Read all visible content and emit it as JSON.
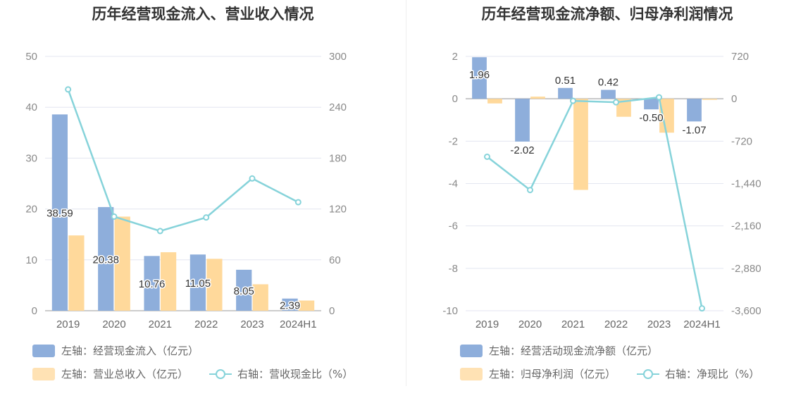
{
  "colors": {
    "bar_primary": "#8eaedb",
    "bar_secondary": "#ffd99b",
    "line": "#86d3da",
    "grid": "#e3e6f0",
    "axis": "#999999"
  },
  "chart_data": [
    {
      "type": "bar",
      "title": "历年经营现金流入、营业收入情况",
      "categories": [
        "2019",
        "2020",
        "2021",
        "2022",
        "2023",
        "2024H1"
      ],
      "ylim": [
        0,
        50
      ],
      "yticks": [
        "0",
        "10",
        "20",
        "30",
        "40",
        "50"
      ],
      "y2lim": [
        0,
        300
      ],
      "y2ticks": [
        "0",
        "60",
        "120",
        "180",
        "240",
        "300"
      ],
      "grid": true,
      "legend_position": "bottom",
      "series": [
        {
          "name": "左轴：经营现金流入（亿元）",
          "kind": "bar",
          "axis": "left",
          "values": [
            38.59,
            20.38,
            10.76,
            11.05,
            8.05,
            2.39
          ],
          "labels": [
            "38.59",
            "20.38",
            "10.76",
            "11.05",
            "8.05",
            "2.39"
          ]
        },
        {
          "name": "左轴：营业总收入（亿元）",
          "kind": "bar",
          "axis": "left",
          "values": [
            14.8,
            18.5,
            11.5,
            10.2,
            5.2,
            2.0
          ]
        },
        {
          "name": "右轴：营收现金比（%）",
          "kind": "line",
          "axis": "right",
          "values": [
            261,
            111,
            94,
            110,
            156,
            128
          ]
        }
      ]
    },
    {
      "type": "bar",
      "title": "历年经营现金流净额、归母净利润情况",
      "categories": [
        "2019",
        "2020",
        "2021",
        "2022",
        "2023",
        "2024H1"
      ],
      "ylim": [
        -10,
        2
      ],
      "yticks": [
        "-10",
        "-8",
        "-6",
        "-4",
        "-2",
        "0",
        "2"
      ],
      "y2lim": [
        -3600,
        720
      ],
      "y2ticks": [
        "-3,600",
        "-2,880",
        "-2,160",
        "-1,440",
        "-720",
        "0",
        "720"
      ],
      "grid": true,
      "legend_position": "bottom",
      "series": [
        {
          "name": "左轴：经营活动现金流净额（亿元）",
          "kind": "bar",
          "axis": "left",
          "values": [
            1.96,
            -2.02,
            0.51,
            0.42,
            -0.5,
            -1.07
          ],
          "labels": [
            "1.96",
            "-2.02",
            "0.51",
            "0.42",
            "-0.50",
            "-1.07"
          ]
        },
        {
          "name": "左轴：归母净利润（亿元）",
          "kind": "bar",
          "axis": "left",
          "values": [
            -0.22,
            0.1,
            -4.3,
            -0.85,
            -1.6,
            -0.05
          ]
        },
        {
          "name": "右轴：净现比（%）",
          "kind": "line",
          "axis": "right",
          "values": [
            -985,
            -1550,
            -35,
            -60,
            25,
            -3560
          ]
        }
      ]
    }
  ]
}
